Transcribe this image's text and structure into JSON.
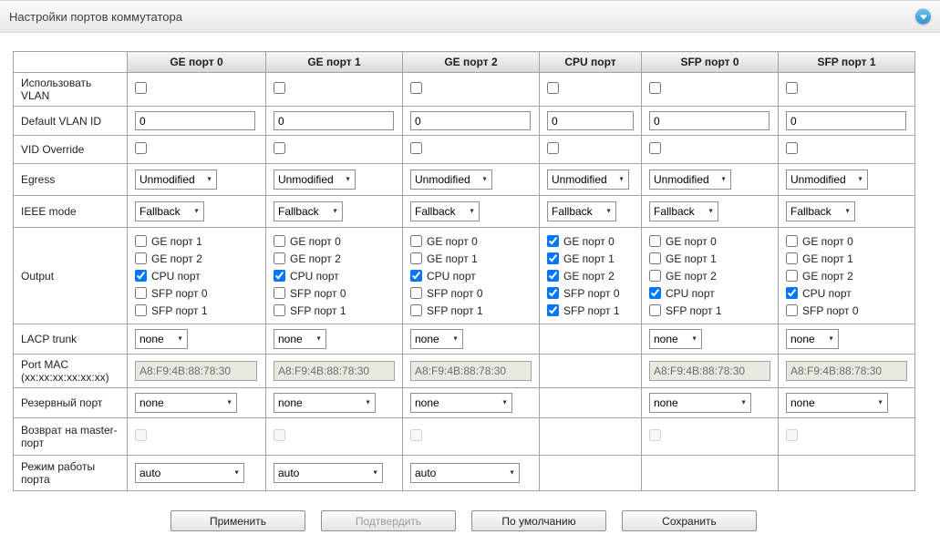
{
  "panel": {
    "title": "Настройки портов коммутатора"
  },
  "icons": {
    "select_arrow": "▼",
    "collapse_arrow": "triangle-down"
  },
  "colors": {
    "accent_blue": "#3fa0d6",
    "table_border": "#a3a3a3",
    "disabled_input_bg": "#e9e9e2",
    "header_gradient_bottom": "#d8d8d8"
  },
  "table": {
    "columns": [
      {
        "id": "ge-port-0",
        "label": "GE порт 0"
      },
      {
        "id": "ge-port-1",
        "label": "GE порт 1"
      },
      {
        "id": "ge-port-2",
        "label": "GE порт 2"
      },
      {
        "id": "cpu-port",
        "label": "CPU порт"
      },
      {
        "id": "sfp-port-0",
        "label": "SFP порт 0"
      },
      {
        "id": "sfp-port-1",
        "label": "SFP порт 1"
      }
    ],
    "rows": [
      {
        "id": "use-vlan",
        "label": "Использовать VLAN",
        "type": "checkbox",
        "cells": [
          {
            "checked": false
          },
          {
            "checked": false
          },
          {
            "checked": false
          },
          {
            "checked": false
          },
          {
            "checked": false
          },
          {
            "checked": false
          }
        ]
      },
      {
        "id": "default-vlan-id",
        "label": "Default VLAN ID",
        "type": "text",
        "cells": [
          {
            "value": "0"
          },
          {
            "value": "0"
          },
          {
            "value": "0"
          },
          {
            "value": "0"
          },
          {
            "value": "0"
          },
          {
            "value": "0"
          }
        ]
      },
      {
        "id": "vid-override",
        "label": "VID Override",
        "type": "checkbox",
        "cells": [
          {
            "checked": false
          },
          {
            "checked": false
          },
          {
            "checked": false
          },
          {
            "checked": false
          },
          {
            "checked": false
          },
          {
            "checked": false
          }
        ]
      },
      {
        "id": "egress",
        "label": "Egress",
        "type": "select",
        "cells": [
          {
            "value": "Unmodified"
          },
          {
            "value": "Unmodified"
          },
          {
            "value": "Unmodified"
          },
          {
            "value": "Unmodified"
          },
          {
            "value": "Unmodified"
          },
          {
            "value": "Unmodified"
          }
        ]
      },
      {
        "id": "ieee-mode",
        "label": "IEEE mode",
        "type": "select",
        "cells": [
          {
            "value": "Fallback"
          },
          {
            "value": "Fallback"
          },
          {
            "value": "Fallback"
          },
          {
            "value": "Fallback"
          },
          {
            "value": "Fallback"
          },
          {
            "value": "Fallback"
          }
        ]
      },
      {
        "id": "output",
        "label": "Output",
        "type": "checkbox-list",
        "cells": [
          {
            "options": [
              {
                "label": "GE порт 1",
                "checked": false
              },
              {
                "label": "GE порт 2",
                "checked": false
              },
              {
                "label": "CPU порт",
                "checked": true
              },
              {
                "label": "SFP порт 0",
                "checked": false
              },
              {
                "label": "SFP порт 1",
                "checked": false
              }
            ]
          },
          {
            "options": [
              {
                "label": "GE порт 0",
                "checked": false
              },
              {
                "label": "GE порт 2",
                "checked": false
              },
              {
                "label": "CPU порт",
                "checked": true
              },
              {
                "label": "SFP порт 0",
                "checked": false
              },
              {
                "label": "SFP порт 1",
                "checked": false
              }
            ]
          },
          {
            "options": [
              {
                "label": "GE порт 0",
                "checked": false
              },
              {
                "label": "GE порт 1",
                "checked": false
              },
              {
                "label": "CPU порт",
                "checked": true
              },
              {
                "label": "SFP порт 0",
                "checked": false
              },
              {
                "label": "SFP порт 1",
                "checked": false
              }
            ]
          },
          {
            "options": [
              {
                "label": "GE порт 0",
                "checked": true
              },
              {
                "label": "GE порт 1",
                "checked": true
              },
              {
                "label": "GE порт 2",
                "checked": true
              },
              {
                "label": "SFP порт 0",
                "checked": true
              },
              {
                "label": "SFP порт 1",
                "checked": true
              }
            ]
          },
          {
            "options": [
              {
                "label": "GE порт 0",
                "checked": false
              },
              {
                "label": "GE порт 1",
                "checked": false
              },
              {
                "label": "GE порт 2",
                "checked": false
              },
              {
                "label": "CPU порт",
                "checked": true
              },
              {
                "label": "SFP порт 1",
                "checked": false
              }
            ]
          },
          {
            "options": [
              {
                "label": "GE порт 0",
                "checked": false
              },
              {
                "label": "GE порт 1",
                "checked": false
              },
              {
                "label": "GE порт 2",
                "checked": false
              },
              {
                "label": "CPU порт",
                "checked": true
              },
              {
                "label": "SFP порт 0",
                "checked": false
              }
            ]
          }
        ]
      },
      {
        "id": "lacp-trunk",
        "label": "LACP trunk",
        "type": "select",
        "cells": [
          {
            "value": "none"
          },
          {
            "value": "none"
          },
          {
            "value": "none"
          },
          null,
          {
            "value": "none"
          },
          {
            "value": "none"
          }
        ]
      },
      {
        "id": "port-mac",
        "label": "Port MAC",
        "label2": "(xx:xx:xx:xx:xx:xx)",
        "type": "text-disabled",
        "cells": [
          {
            "value": "A8:F9:4B:88:78:30"
          },
          {
            "value": "A8:F9:4B:88:78:30"
          },
          {
            "value": "A8:F9:4B:88:78:30"
          },
          null,
          {
            "value": "A8:F9:4B:88:78:30"
          },
          {
            "value": "A8:F9:4B:88:78:30"
          }
        ]
      },
      {
        "id": "reserve-port",
        "label": "Резервный порт",
        "type": "select",
        "cells": [
          {
            "value": "none"
          },
          {
            "value": "none"
          },
          {
            "value": "none"
          },
          null,
          {
            "value": "none"
          },
          {
            "value": "none"
          }
        ]
      },
      {
        "id": "master-return",
        "label": "Возврат на master-порт",
        "type": "checkbox-disabled",
        "cells": [
          {
            "checked": false
          },
          {
            "checked": false
          },
          {
            "checked": false
          },
          null,
          {
            "checked": false
          },
          {
            "checked": false
          }
        ]
      },
      {
        "id": "port-mode",
        "label": "Режим работы порта",
        "type": "select",
        "cells": [
          {
            "value": "auto"
          },
          {
            "value": "auto"
          },
          {
            "value": "auto"
          },
          null,
          null,
          null
        ]
      }
    ]
  },
  "buttons": [
    {
      "id": "apply",
      "label": "Применить",
      "disabled": false
    },
    {
      "id": "confirm",
      "label": "Подтвердить",
      "disabled": true
    },
    {
      "id": "defaults",
      "label": "По умолчанию",
      "disabled": false
    },
    {
      "id": "save",
      "label": "Сохранить",
      "disabled": false
    }
  ]
}
